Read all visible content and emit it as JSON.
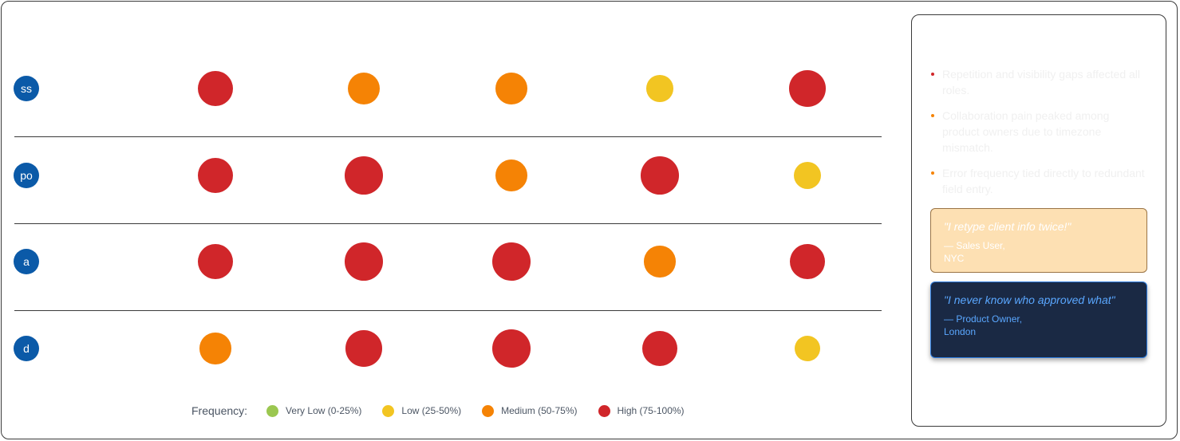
{
  "chart_data": {
    "type": "heatmap",
    "columns": [
      "",
      "",
      "",
      "",
      ""
    ],
    "rows": [
      {
        "badge": "ss",
        "label": "",
        "levels": [
          "High",
          "Medium",
          "Medium",
          "Low",
          "High"
        ],
        "values": [
          0.82,
          0.68,
          0.66,
          0.45,
          0.85
        ]
      },
      {
        "badge": "po",
        "label": "",
        "levels": [
          "High",
          "High",
          "Medium",
          "High",
          "Low"
        ],
        "values": [
          0.82,
          0.92,
          0.66,
          0.92,
          0.48
        ]
      },
      {
        "badge": "a",
        "label": "",
        "levels": [
          "High",
          "High",
          "High",
          "Medium",
          "High"
        ],
        "values": [
          0.82,
          0.92,
          0.92,
          0.64,
          0.82
        ]
      },
      {
        "badge": "d",
        "label": "",
        "levels": [
          "Medium",
          "High",
          "High",
          "High",
          "Low"
        ],
        "values": [
          0.64,
          0.85,
          0.92,
          0.82,
          0.42
        ]
      }
    ],
    "legend": {
      "title": "Frequency:",
      "items": [
        {
          "level": "Very Low",
          "label": "Very Low (0-25%)",
          "color": "#9bc750"
        },
        {
          "level": "Low",
          "label": "Low (25-50%)",
          "color": "#f2c522"
        },
        {
          "level": "Medium",
          "label": "Medium (50-75%)",
          "color": "#f58305"
        },
        {
          "level": "High",
          "label": "High (75-100%)",
          "color": "#d0262a"
        }
      ]
    }
  },
  "insights_panel": {
    "title": "",
    "items": [
      {
        "text": "Repetition and visibility gaps affected all roles.",
        "dot_color": "#d0262a"
      },
      {
        "text": "Collaboration pain peaked among product owners due to timezone mismatch.",
        "dot_color": "#f58305"
      },
      {
        "text": "Error frequency tied directly to redundant field entry.",
        "dot_color": "#f58305"
      }
    ],
    "quotes": [
      {
        "text": "\"I retype client info twice!\"",
        "attribution_line1": "— Sales User,",
        "attribution_line2": "NYC"
      },
      {
        "text": "\"I never know who approved what\"",
        "attribution_line1": "— Product Owner,",
        "attribution_line2": "London"
      }
    ]
  }
}
